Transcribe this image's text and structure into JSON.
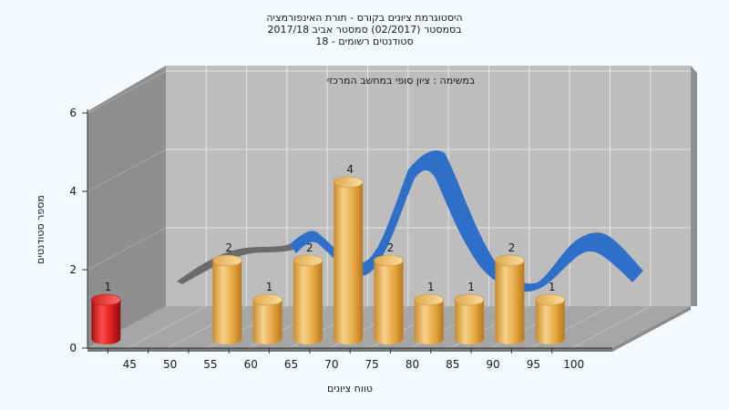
{
  "chart_data": {
    "type": "bar",
    "title_lines": [
      "היסטוגרמת ציונים בקורס - תורת האינפורמציה",
      "בסמסטר  (02/2017)  סמסטר אביב 2017/18",
      "סטודנטים רשומים - 18"
    ],
    "subtitle": "במשימה : ציון סופי במחשב המרכזי",
    "xlabel": "טווח ציונים",
    "ylabel": "מספר סטודנטים",
    "x_ticks": [
      45,
      50,
      55,
      60,
      65,
      70,
      75,
      80,
      85,
      90,
      95,
      100
    ],
    "ylim": [
      0,
      6
    ],
    "y_ticks": [
      0,
      2,
      4,
      6
    ],
    "grid": true,
    "series": [
      {
        "bins": [
          45,
          60,
          65,
          70,
          75,
          80,
          85,
          90,
          95,
          100
        ],
        "values": [
          1,
          2,
          1,
          2,
          4,
          2,
          1,
          1,
          2,
          1
        ],
        "data_labels": [
          "1",
          "2",
          "1",
          "2",
          "4",
          "2",
          "1",
          "1",
          "2",
          "1"
        ]
      }
    ],
    "highlight_bin": 45,
    "colors": {
      "bar": "#e6a640",
      "bar_highlight": "#d81e1e",
      "curve": "#2e6fc9",
      "curve_shadow": "#6b6b6b",
      "back_wall": "#bdbdbd",
      "side_wall": "#8e8e8e",
      "floor": "#a6a6a6"
    }
  }
}
